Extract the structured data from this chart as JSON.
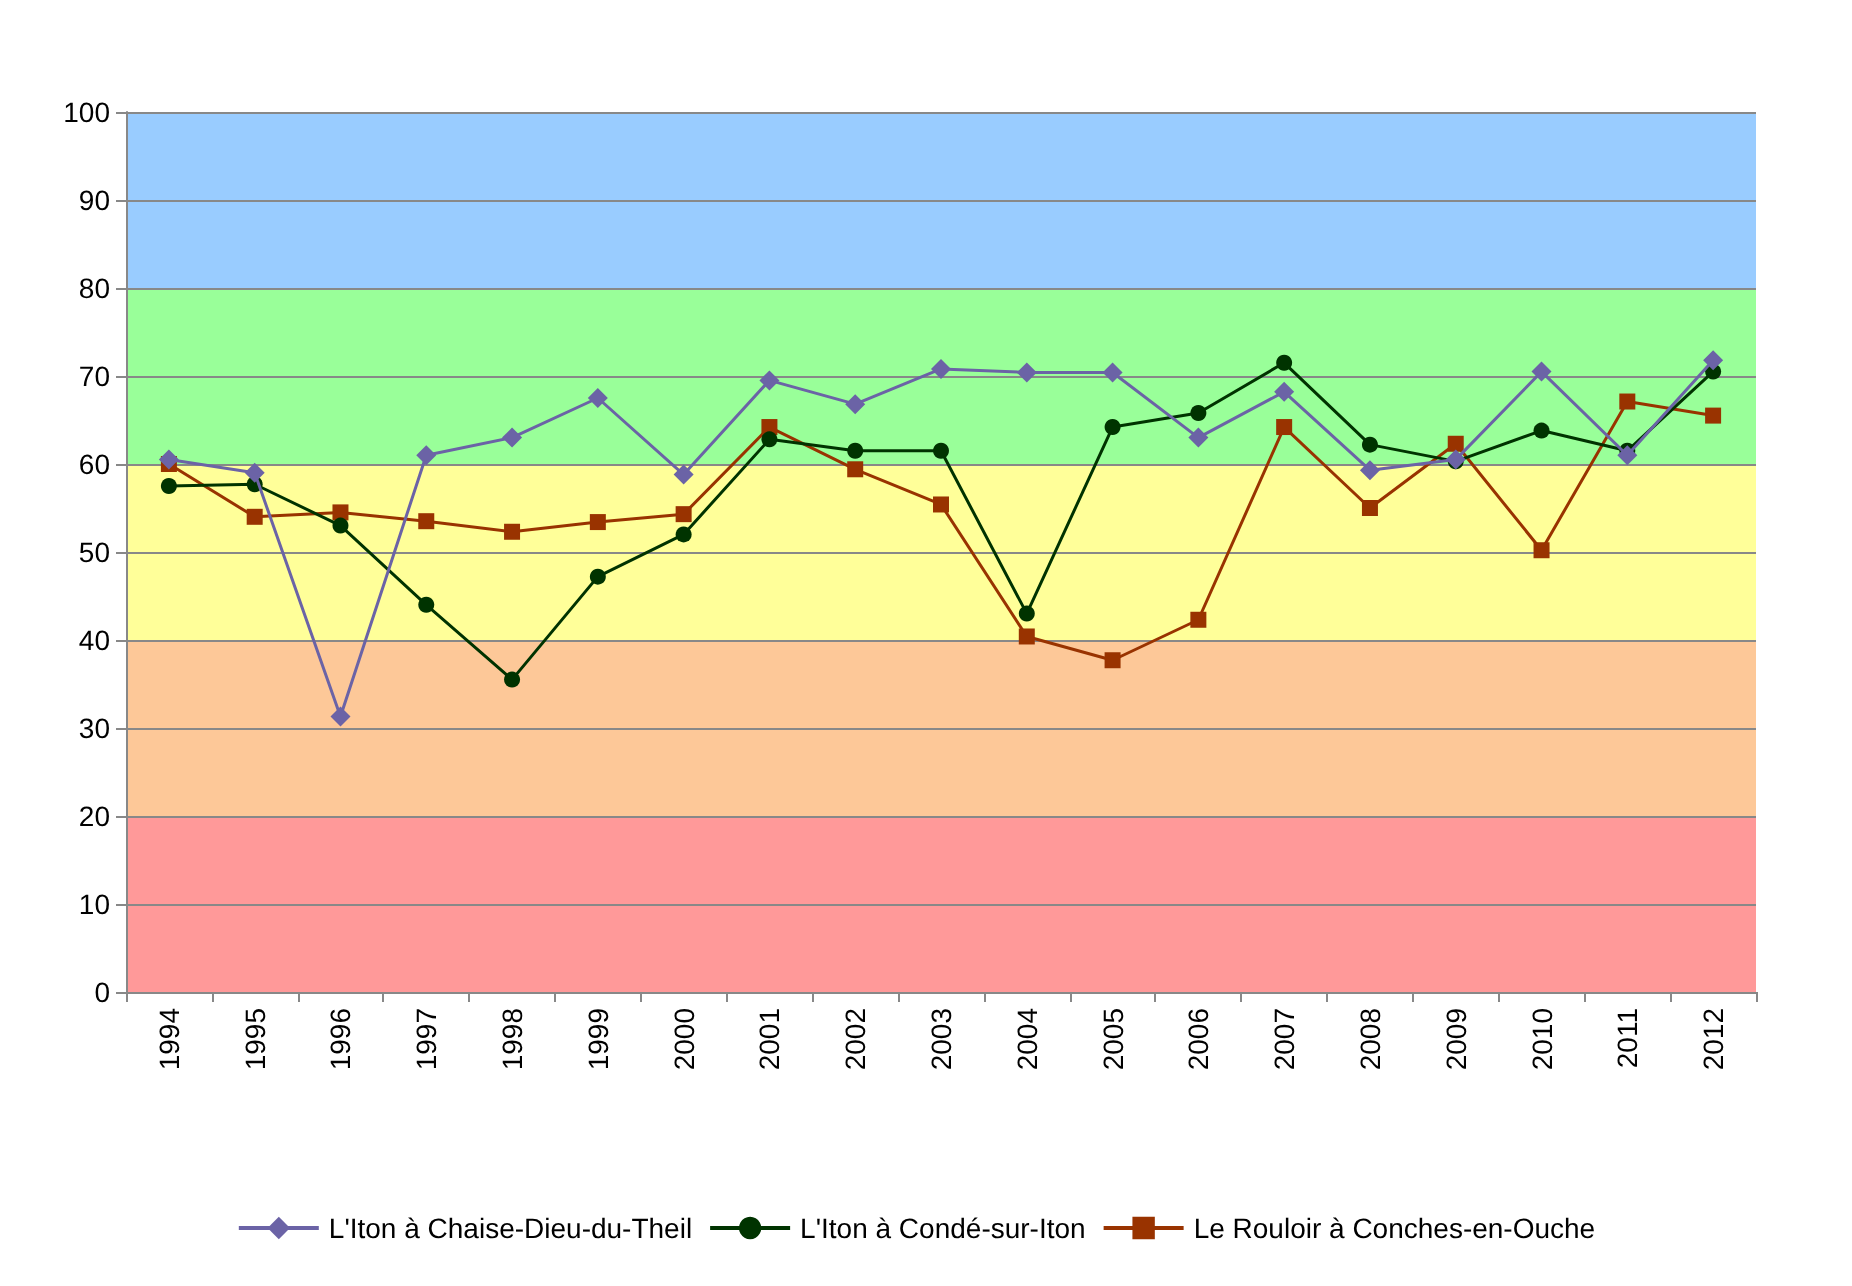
{
  "chart_data": {
    "type": "line",
    "categories": [
      "1994",
      "1995",
      "1996",
      "1997",
      "1998",
      "1999",
      "2000",
      "2001",
      "2002",
      "2003",
      "2004",
      "2005",
      "2006",
      "2007",
      "2008",
      "2009",
      "2010",
      "2011",
      "2012"
    ],
    "series": [
      {
        "name": "L'Iton à Chaise-Dieu-du-Theil",
        "color": "#6b63a6",
        "marker": "diamond",
        "values": [
          60.5,
          59,
          31.3,
          61,
          63,
          67.5,
          58.8,
          69.5,
          66.8,
          70.8,
          70.4,
          70.4,
          63,
          68.2,
          59.3,
          60.5,
          70.5,
          61,
          71.8
        ]
      },
      {
        "name": "L'Iton à Condé-sur-Iton",
        "color": "#003300",
        "marker": "circle",
        "values": [
          57.5,
          57.7,
          53,
          44,
          35.5,
          47.2,
          52,
          62.8,
          61.5,
          61.5,
          43,
          64.2,
          65.8,
          71.5,
          62.2,
          60.3,
          63.8,
          61.5,
          70.5
        ]
      },
      {
        "name": "Le Rouloir à Conches-en-Ouche",
        "color": "#993300",
        "marker": "square",
        "values": [
          60,
          54,
          54.5,
          53.5,
          52.3,
          53.4,
          54.3,
          64.2,
          59.4,
          55.4,
          40.4,
          37.7,
          42.3,
          64.2,
          55,
          62.3,
          50.2,
          67.1,
          65.5
        ]
      }
    ],
    "ylim": [
      0,
      100
    ],
    "yticks": [
      0,
      10,
      20,
      30,
      40,
      50,
      60,
      70,
      80,
      90,
      100
    ],
    "grid": "y",
    "legend": "bottom",
    "bands": [
      {
        "axis": "y",
        "from": 0,
        "to": 20,
        "color": "#ff9999"
      },
      {
        "axis": "y",
        "from": 20,
        "to": 40,
        "color": "#fdc898"
      },
      {
        "axis": "y",
        "from": 40,
        "to": 60,
        "color": "#ffff99"
      },
      {
        "axis": "y",
        "from": 60,
        "to": 80,
        "color": "#99ff99"
      },
      {
        "axis": "y",
        "from": 80,
        "to": 100,
        "color": "#99ccff"
      }
    ]
  }
}
